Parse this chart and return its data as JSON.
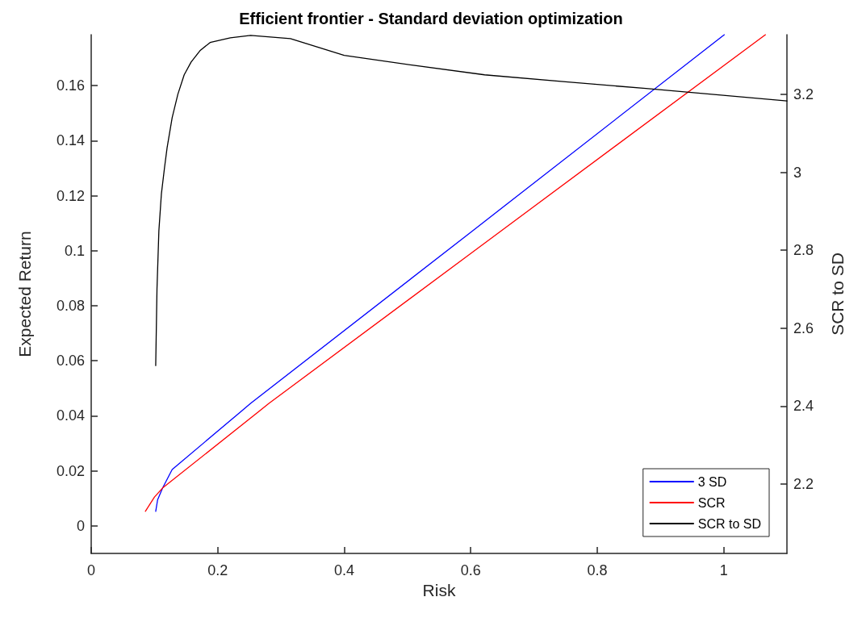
{
  "chart_data": {
    "type": "line",
    "title": "Efficient frontier - Standard deviation optimization",
    "xlabel": "Risk",
    "ylabel": "Expected Return",
    "y2label": "SCR to SD",
    "xlim": [
      0,
      1.1
    ],
    "xticks": [
      0,
      0.2,
      0.4,
      0.6,
      0.8,
      1
    ],
    "ylim": [
      -0.01,
      0.1785
    ],
    "yticks": [
      0,
      0.02,
      0.04,
      0.06,
      0.08,
      0.1,
      0.12,
      0.14,
      0.16
    ],
    "y2lim": [
      2.022,
      3.353
    ],
    "y2ticks": [
      2.2,
      2.4,
      2.6,
      2.8,
      3,
      3.2
    ],
    "grid": false,
    "legend": "bottom right",
    "marker": "none",
    "line_style": "solid",
    "series": [
      {
        "name": "3 SD",
        "color": "#0000ff",
        "x": [
          0.102,
          0.105,
          0.113,
          0.128,
          0.252,
          0.6,
          1.001
        ],
        "values": [
          0.0053,
          0.0095,
          0.0138,
          0.0205,
          0.0445,
          0.1067,
          0.1785
        ]
      },
      {
        "name": "SCR",
        "color": "#ff0000",
        "x": [
          0.0856,
          0.1,
          0.113,
          0.281,
          0.6,
          1.066
        ],
        "values": [
          0.0053,
          0.0105,
          0.0138,
          0.0445,
          0.099,
          0.1785
        ]
      },
      {
        "name": "SCR to SD",
        "color": "#000000",
        "axis": "y2",
        "x": [
          0.102,
          0.104,
          0.107,
          0.111,
          0.116,
          0.12,
          0.128,
          0.137,
          0.147,
          0.158,
          0.172,
          0.188,
          0.22,
          0.252,
          0.315,
          0.4,
          0.507,
          0.622,
          0.75,
          0.877,
          1.1
        ],
        "values": [
          2.504,
          2.7,
          2.85,
          2.945,
          3.013,
          3.063,
          3.14,
          3.2,
          3.25,
          3.283,
          3.312,
          3.333,
          3.345,
          3.351,
          3.343,
          3.3,
          3.275,
          3.25,
          3.232,
          3.215,
          3.183
        ]
      }
    ]
  }
}
